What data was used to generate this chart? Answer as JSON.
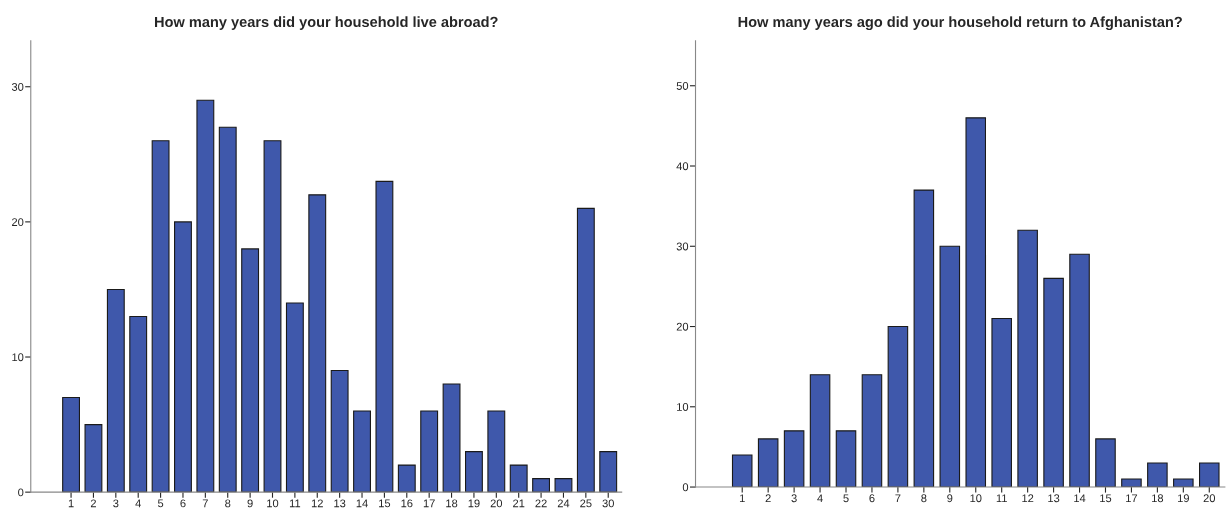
{
  "chart_data": [
    {
      "type": "bar",
      "title": "How many years did your household live abroad?",
      "categories": [
        "1",
        "2",
        "3",
        "4",
        "5",
        "6",
        "7",
        "8",
        "9",
        "10",
        "11",
        "12",
        "13",
        "14",
        "15",
        "16",
        "17",
        "18",
        "19",
        "20",
        "21",
        "22",
        "24",
        "25",
        "30"
      ],
      "values": [
        7,
        5,
        15,
        13,
        26,
        20,
        29,
        27,
        18,
        26,
        14,
        22,
        9,
        6,
        23,
        2,
        6,
        8,
        3,
        6,
        2,
        1,
        1,
        21,
        3
      ],
      "color": "#3f58ab",
      "ylim": [
        0,
        33.4
      ],
      "yticks": [
        0,
        10,
        20,
        30
      ],
      "grid": false
    },
    {
      "type": "bar",
      "title": "How many years ago did your household return to Afghanistan?",
      "categories": [
        "1",
        "2",
        "3",
        "4",
        "5",
        "6",
        "7",
        "8",
        "9",
        "10",
        "11",
        "12",
        "13",
        "14",
        "15",
        "17",
        "18",
        "19",
        "20"
      ],
      "values": [
        4,
        6,
        7,
        14,
        7,
        14,
        20,
        37,
        30,
        46,
        21,
        32,
        26,
        29,
        6,
        1,
        3,
        1,
        3
      ],
      "color": "#3f58ab",
      "ylim": [
        0,
        55.6
      ],
      "yticks": [
        0,
        10,
        20,
        30,
        40,
        50
      ],
      "grid": false
    }
  ]
}
